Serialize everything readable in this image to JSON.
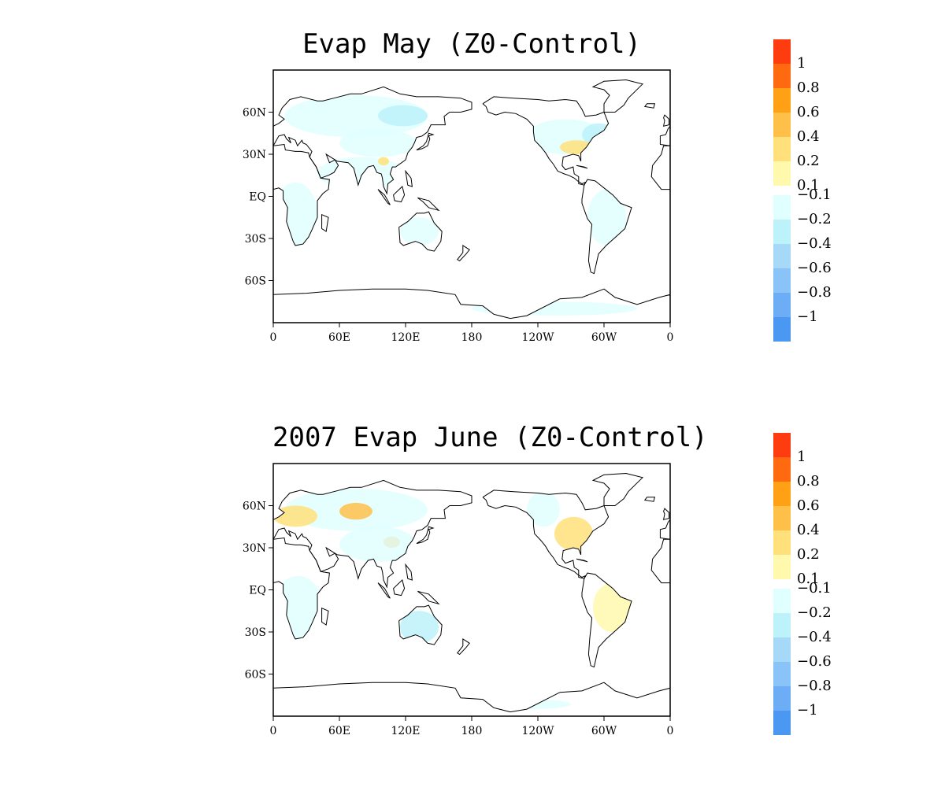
{
  "colors": {
    "positive": [
      "#fff9ad",
      "#ffe07a",
      "#ffc04a",
      "#ffa015",
      "#ff6a10",
      "#ff3c10"
    ],
    "negative": [
      "#e0ffff",
      "#bdf2fa",
      "#a5d9f7",
      "#89c3f7",
      "#6cadf5",
      "#4a98f2"
    ],
    "coast": "#000000"
  },
  "panels": [
    {
      "title": "Evap May (Z0-Control)",
      "chart_data": {
        "type": "heatmap",
        "title": "Evap May (Z0-Control)",
        "x_ticks": [
          "0",
          "60E",
          "120E",
          "180",
          "120W",
          "60W",
          "0"
        ],
        "y_ticks": [
          "60N",
          "30N",
          "EQ",
          "30S",
          "60S"
        ],
        "xlim": [
          0,
          360
        ],
        "ylim": [
          -90,
          90
        ],
        "colorbar_levels": [
          "1",
          "0.8",
          "0.6",
          "0.4",
          "0.2",
          "0.1",
          "-0.1",
          "-0.2",
          "-0.4",
          "-0.6",
          "-0.8",
          "-1"
        ],
        "regions": [
          {
            "lon": [
              10,
              140
            ],
            "lat": [
              42,
              72
            ],
            "level": -1
          },
          {
            "lon": [
              60,
              130
            ],
            "lat": [
              28,
              48
            ],
            "level": -1
          },
          {
            "lon": [
              230,
              300
            ],
            "lat": [
              30,
              55
            ],
            "level": -1
          },
          {
            "lon": [
              0,
              40
            ],
            "lat": [
              -35,
              10
            ],
            "level": -1
          },
          {
            "lon": [
              115,
              150
            ],
            "lat": [
              -35,
              -15
            ],
            "level": -1
          },
          {
            "lon": [
              285,
              320
            ],
            "lat": [
              -35,
              5
            ],
            "level": -1
          },
          {
            "lon": [
              40,
              120
            ],
            "lat": [
              5,
              28
            ],
            "level": -1
          },
          {
            "lon": [
              180,
              330
            ],
            "lat": [
              -85,
              -75
            ],
            "level": -1
          },
          {
            "lon": [
              95,
              140
            ],
            "lat": [
              50,
              65
            ],
            "level": -2
          },
          {
            "lon": [
              280,
              310
            ],
            "lat": [
              36,
              52
            ],
            "level": -2
          },
          {
            "lon": [
              260,
              290
            ],
            "lat": [
              30,
              40
            ],
            "level": 2
          },
          {
            "lon": [
              95,
              105
            ],
            "lat": [
              22,
              28
            ],
            "level": 2
          },
          {
            "lon": [
              108,
              112
            ],
            "lat": [
              2,
              6
            ],
            "level": 3
          }
        ]
      },
      "colorbar": {
        "labels": [
          "1",
          "0.8",
          "0.6",
          "0.4",
          "0.2",
          "0.1",
          "−0.1",
          "−0.2",
          "−0.4",
          "−0.6",
          "−0.8",
          "−1"
        ]
      }
    },
    {
      "title": "2007 Evap June (Z0-Control)",
      "chart_data": {
        "type": "heatmap",
        "title": "2007 Evap June (Z0-Control)",
        "x_ticks": [
          "0",
          "60E",
          "120E",
          "180",
          "120W",
          "60W",
          "0"
        ],
        "y_ticks": [
          "60N",
          "30N",
          "EQ",
          "30S",
          "60S"
        ],
        "xlim": [
          0,
          360
        ],
        "ylim": [
          -90,
          90
        ],
        "colorbar_levels": [
          "1",
          "0.8",
          "0.6",
          "0.4",
          "0.2",
          "0.1",
          "-0.1",
          "-0.2",
          "-0.4",
          "-0.6",
          "-0.8",
          "-1"
        ],
        "regions": [
          {
            "lon": [
              10,
              140
            ],
            "lat": [
              42,
              72
            ],
            "level": -1
          },
          {
            "lon": [
              60,
              90
            ],
            "lat": [
              50,
              62
            ],
            "level": 3
          },
          {
            "lon": [
              0,
              40
            ],
            "lat": [
              45,
              60
            ],
            "level": 2
          },
          {
            "lon": [
              100,
              115
            ],
            "lat": [
              30,
              38
            ],
            "level": 4
          },
          {
            "lon": [
              60,
              130
            ],
            "lat": [
              20,
              45
            ],
            "level": -1
          },
          {
            "lon": [
              255,
              290
            ],
            "lat": [
              28,
              52
            ],
            "level": 2
          },
          {
            "lon": [
              230,
              260
            ],
            "lat": [
              45,
              70
            ],
            "level": -1
          },
          {
            "lon": [
              0,
              45
            ],
            "lat": [
              -35,
              10
            ],
            "level": -1
          },
          {
            "lon": [
              115,
              150
            ],
            "lat": [
              -38,
              -15
            ],
            "level": -2
          },
          {
            "lon": [
              290,
              325
            ],
            "lat": [
              -30,
              5
            ],
            "level": 1
          },
          {
            "lon": [
              200,
              270
            ],
            "lat": [
              -85,
              -78
            ],
            "level": -1
          }
        ]
      },
      "colorbar": {
        "labels": [
          "1",
          "0.8",
          "0.6",
          "0.4",
          "0.2",
          "0.1",
          "−0.1",
          "−0.2",
          "−0.4",
          "−0.6",
          "−0.8",
          "−1"
        ]
      }
    }
  ]
}
